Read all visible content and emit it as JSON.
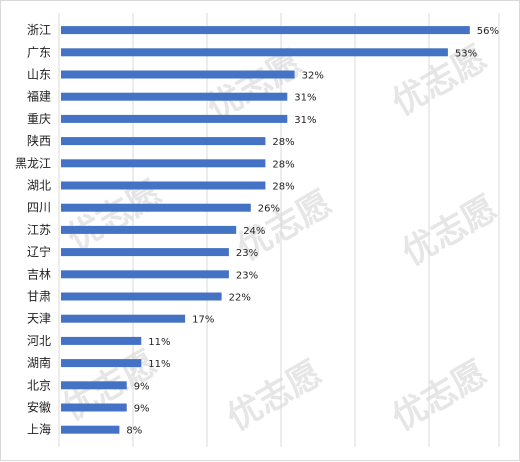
{
  "chart_data": {
    "type": "bar",
    "orientation": "horizontal",
    "categories": [
      "浙江",
      "广东",
      "山东",
      "福建",
      "重庆",
      "陕西",
      "黑龙江",
      "湖北",
      "四川",
      "江苏",
      "辽宁",
      "吉林",
      "甘肃",
      "天津",
      "河北",
      "湖南",
      "北京",
      "安徽",
      "上海"
    ],
    "values": [
      56,
      53,
      32,
      31,
      31,
      28,
      28,
      28,
      26,
      24,
      23,
      23,
      22,
      17,
      11,
      11,
      9,
      9,
      8
    ],
    "value_suffix": "%",
    "xlim": [
      0,
      60
    ],
    "grid": true,
    "legend": "none",
    "bar_color": "#4472c4",
    "gridline_color": "#d9d9d9"
  },
  "watermark": {
    "text": "优志愿",
    "color": "#e6e6e6"
  }
}
